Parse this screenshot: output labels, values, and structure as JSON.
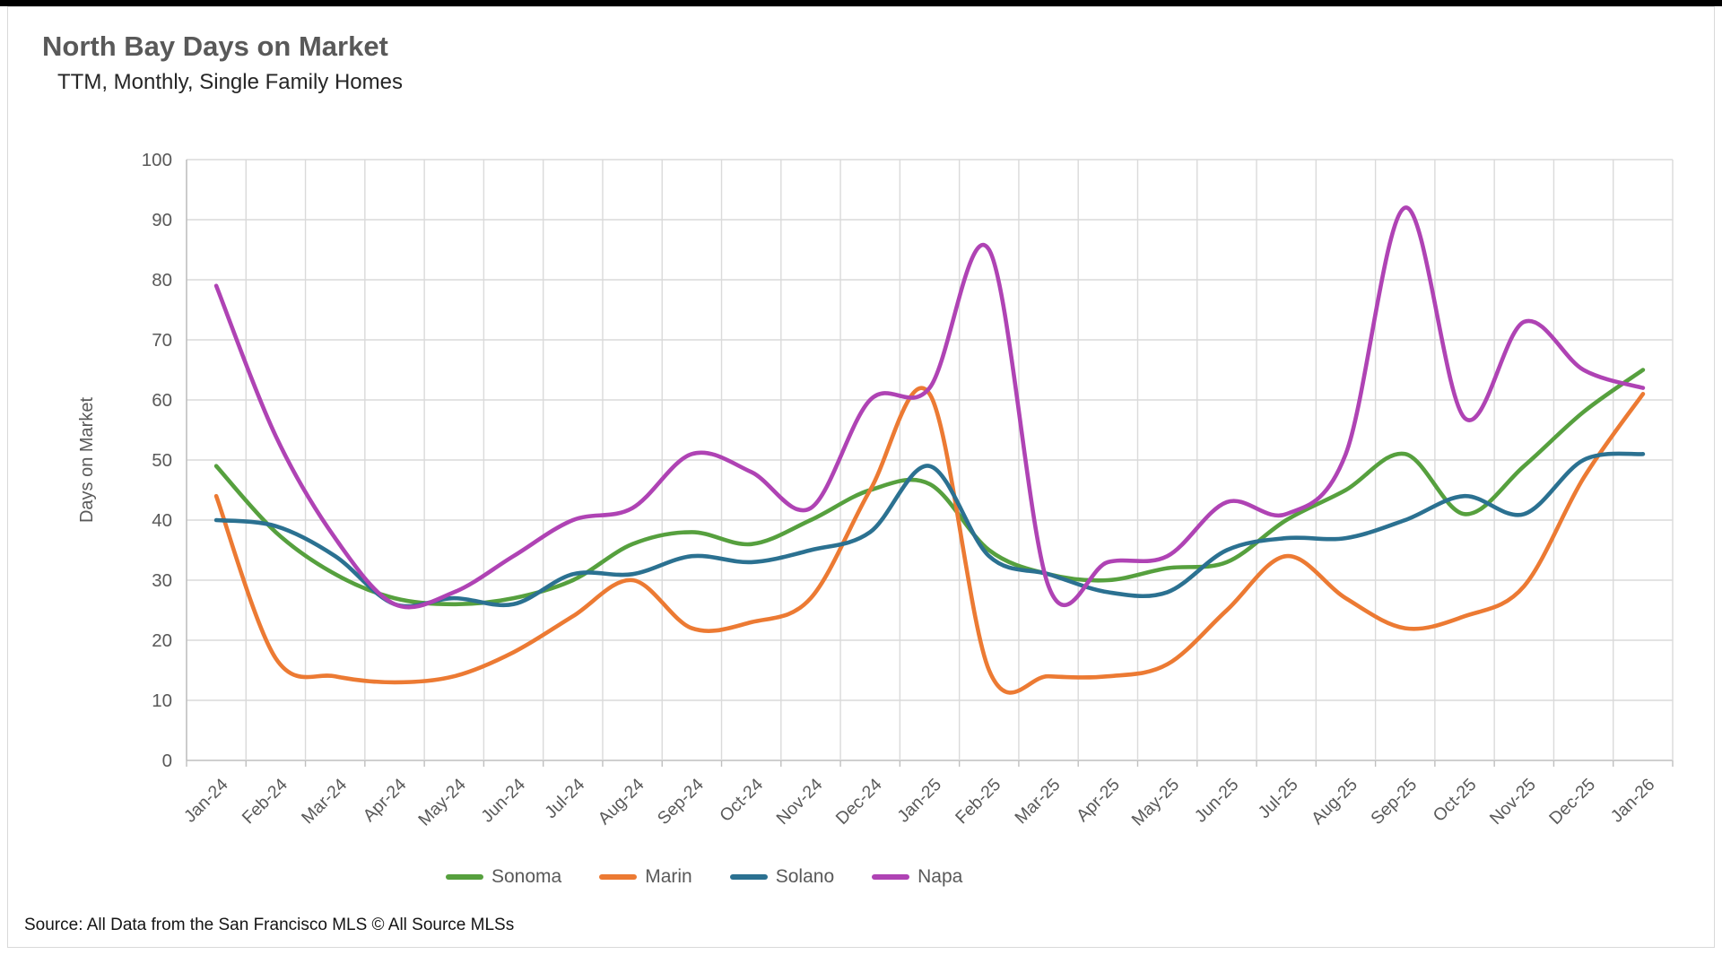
{
  "header": {
    "title": "North Bay Days on Market",
    "subtitle": "TTM, Monthly, Single Family Homes"
  },
  "footer": {
    "source": "Source: All Data from the San Francisco MLS © All Source MLSs"
  },
  "chart_data": {
    "type": "line",
    "title": "North Bay Days on Market",
    "subtitle": "TTM, Monthly, Single Family Homes",
    "xlabel": "",
    "ylabel": "Days on Market",
    "ylim": [
      0,
      100
    ],
    "ytick_step": 10,
    "yticks": [
      0,
      10,
      20,
      30,
      40,
      50,
      60,
      70,
      80,
      90,
      100
    ],
    "grid": true,
    "smooth": true,
    "legend_position": "bottom",
    "categories": [
      "Jan-24",
      "Feb-24",
      "Mar-24",
      "Apr-24",
      "May-24",
      "Jun-24",
      "Jul-24",
      "Aug-24",
      "Sep-24",
      "Oct-24",
      "Nov-24",
      "Dec-24",
      "Jan-25",
      "Feb-25",
      "Mar-25",
      "Apr-25",
      "May-25",
      "Jun-25",
      "Jul-25",
      "Aug-25",
      "Sep-25",
      "Oct-25",
      "Nov-25",
      "Dec-25",
      "Jan-26"
    ],
    "series": [
      {
        "name": "Sonoma",
        "color": "#56A03E",
        "values": [
          49,
          38,
          31,
          27,
          26,
          27,
          30,
          36,
          38,
          36,
          40,
          45,
          46,
          35,
          31,
          30,
          32,
          33,
          40,
          45,
          51,
          41,
          49,
          58,
          65
        ]
      },
      {
        "name": "Marin",
        "color": "#EC7A33",
        "values": [
          44,
          17,
          14,
          13,
          14,
          18,
          24,
          30,
          22,
          23,
          27,
          45,
          61,
          15,
          14,
          14,
          16,
          25,
          34,
          27,
          22,
          24,
          29,
          47,
          61
        ]
      },
      {
        "name": "Solano",
        "color": "#2B7191",
        "values": [
          40,
          39,
          34,
          26,
          27,
          26,
          31,
          31,
          34,
          33,
          35,
          38,
          49,
          34,
          31,
          28,
          28,
          35,
          37,
          37,
          40,
          44,
          41,
          50,
          51
        ]
      },
      {
        "name": "Napa",
        "color": "#AF43B4",
        "values": [
          79,
          54,
          37,
          26,
          28,
          34,
          40,
          42,
          51,
          48,
          42,
          60,
          62,
          85,
          29,
          33,
          34,
          43,
          41,
          51,
          92,
          57,
          73,
          65,
          62
        ]
      }
    ],
    "colors": {
      "gridline": "#dadada",
      "axis": "#bfbfbf",
      "tick_label": "#595959"
    }
  }
}
